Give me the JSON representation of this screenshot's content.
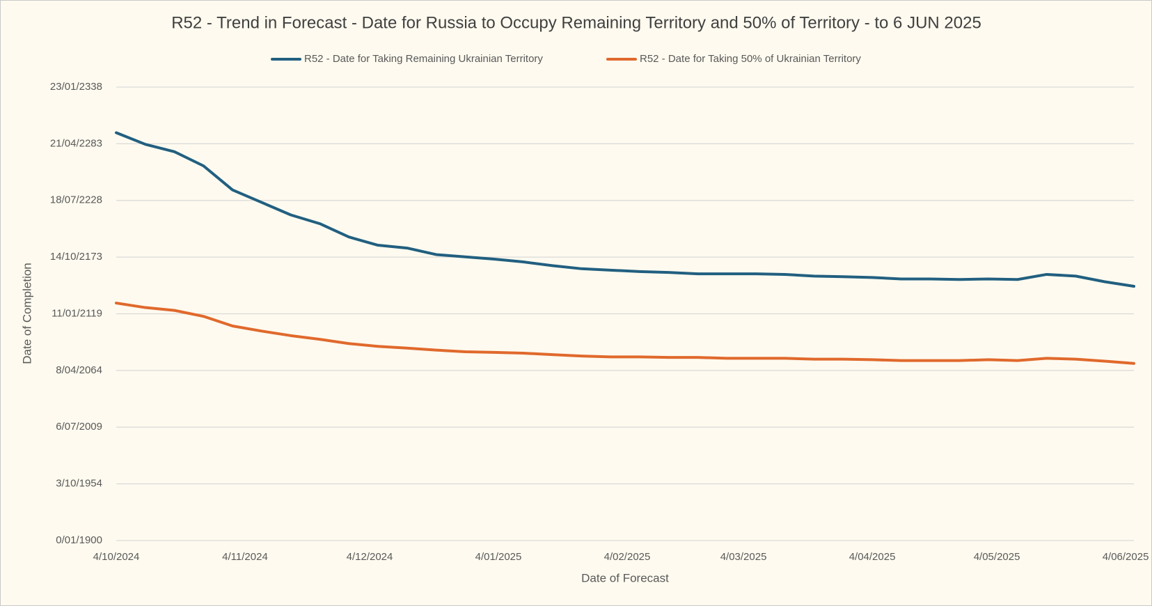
{
  "chart_data": {
    "type": "line",
    "title": "R52 - Trend in Forecast - Date for Russia to Occupy Remaining Territory and 50% of Territory - to 6 JUN 2025",
    "x_label": "Date of Forecast",
    "y_label": "Date of Completion",
    "x": [
      45569,
      45576,
      45583,
      45590,
      45597,
      45604,
      45611,
      45618,
      45625,
      45632,
      45639,
      45646,
      45653,
      45660,
      45667,
      45674,
      45681,
      45688,
      45695,
      45702,
      45709,
      45716,
      45723,
      45730,
      45737,
      45744,
      45751,
      45758,
      45765,
      45772,
      45779,
      45786,
      45793,
      45800,
      45807,
      45814
    ],
    "series": [
      {
        "name": "R52 - Date for Taking Remaining Ukrainian Territory",
        "color": "#215f80",
        "values": [
          143900,
          139800,
          137200,
          132200,
          123700,
          119300,
          114900,
          111800,
          107100,
          104200,
          103200,
          100900,
          100100,
          99300,
          98300,
          97000,
          95900,
          95400,
          94900,
          94600,
          94100,
          94100,
          94100,
          93900,
          93300,
          93100,
          92800,
          92300,
          92300,
          92100,
          92300,
          92100,
          93900,
          93300,
          91300,
          89700
        ]
      },
      {
        "name": "R52 - Date for Taking  50% of Ukrainian Territory",
        "color": "#e0692c",
        "values": [
          83800,
          82200,
          81200,
          79100,
          75700,
          73900,
          72300,
          71000,
          69500,
          68500,
          67900,
          67200,
          66600,
          66400,
          66100,
          65600,
          65100,
          64800,
          64800,
          64600,
          64600,
          64300,
          64300,
          64300,
          64000,
          64000,
          63800,
          63500,
          63500,
          63500,
          63800,
          63500,
          64300,
          64000,
          63300,
          62500
        ]
      }
    ],
    "xlim": [
      45569,
      45814
    ],
    "xticks": [
      {
        "value": 45569,
        "label": "4/10/2024"
      },
      {
        "value": 45600,
        "label": "4/11/2024"
      },
      {
        "value": 45630,
        "label": "4/12/2024"
      },
      {
        "value": 45661,
        "label": "4/01/2025"
      },
      {
        "value": 45692,
        "label": "4/02/2025"
      },
      {
        "value": 45720,
        "label": "4/03/2025"
      },
      {
        "value": 45751,
        "label": "4/04/2025"
      },
      {
        "value": 45781,
        "label": "4/05/2025"
      },
      {
        "value": 45812,
        "label": "4/06/2025"
      }
    ],
    "ylim": [
      0,
      160000
    ],
    "yticks": [
      {
        "value": 0,
        "label": "0/01/1900"
      },
      {
        "value": 20000,
        "label": "3/10/1954"
      },
      {
        "value": 40000,
        "label": "6/07/2009"
      },
      {
        "value": 60000,
        "label": "8/04/2064"
      },
      {
        "value": 80000,
        "label": "11/01/2119"
      },
      {
        "value": 100000,
        "label": "14/10/2173"
      },
      {
        "value": 120000,
        "label": "18/07/2228"
      },
      {
        "value": 140000,
        "label": "21/04/2283"
      },
      {
        "value": 160000,
        "label": "23/01/2338"
      }
    ],
    "grid": true,
    "legend": "top"
  }
}
